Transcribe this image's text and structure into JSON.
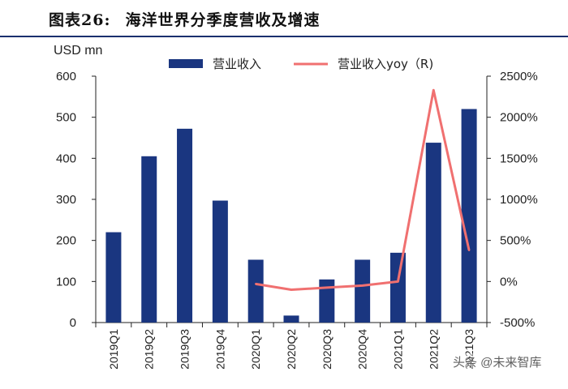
{
  "header": {
    "figure_number": "图表26:",
    "figure_title": "海洋世界分季度营收及增速"
  },
  "axis_unit_label": "USD mn",
  "watermark": "头条 @未来智库",
  "colors": {
    "bar": "#1a3680",
    "line": "#f07070",
    "axis": "#222222"
  },
  "chart_data": {
    "type": "bar",
    "title": "海洋世界分季度营收及增速",
    "categories": [
      "2019Q1",
      "2019Q2",
      "2019Q3",
      "2019Q4",
      "2020Q1",
      "2020Q2",
      "2020Q3",
      "2020Q4",
      "2021Q1",
      "2021Q2",
      "2021Q3"
    ],
    "ylabel": "USD mn",
    "ylim": [
      0,
      600
    ],
    "yticks": [
      "0",
      "100",
      "200",
      "300",
      "400",
      "500",
      "600"
    ],
    "y2lim": [
      -500,
      2500
    ],
    "y2ticks": [
      "-500%",
      "0%",
      "500%",
      "1000%",
      "1500%",
      "2000%",
      "2500%"
    ],
    "legend_position": "top",
    "series": [
      {
        "name": "营业收入",
        "type": "bar",
        "axis": "left",
        "values": [
          220,
          405,
          472,
          297,
          153,
          17,
          105,
          153,
          170,
          438,
          520
        ]
      },
      {
        "name": "营业收入yoy（R)",
        "type": "line",
        "axis": "right",
        "values": [
          null,
          null,
          null,
          null,
          -30,
          -100,
          -75,
          -50,
          0,
          2330,
          380
        ]
      }
    ]
  }
}
